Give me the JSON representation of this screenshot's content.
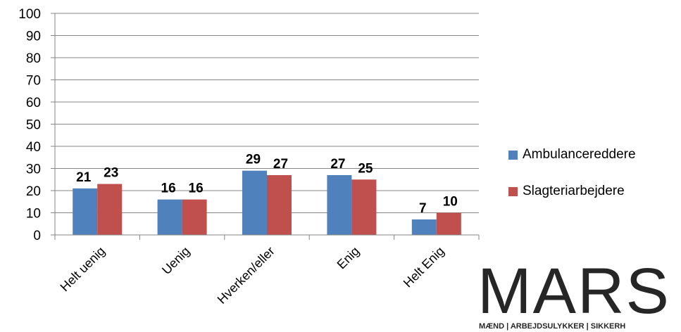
{
  "chart_data": {
    "type": "bar",
    "categories": [
      "Helt uenig",
      "Uenig",
      "Hverken/eller",
      "Enig",
      "Helt Enig"
    ],
    "series": [
      {
        "name": "Ambulancereddere",
        "values": [
          21,
          16,
          29,
          27,
          7
        ],
        "color": "#4f81bd"
      },
      {
        "name": "Slagteriarbejdere",
        "values": [
          23,
          16,
          27,
          25,
          10
        ],
        "color": "#c0504d"
      }
    ],
    "ylim": [
      0,
      100
    ],
    "yticks": [
      0,
      10,
      20,
      30,
      40,
      50,
      60,
      70,
      80,
      90,
      100
    ],
    "grid": true,
    "legend_position": "right"
  },
  "logo": {
    "name": "MARS",
    "tagline": "MÆND | ARBEJDSULYKKER | SIKKERH"
  }
}
